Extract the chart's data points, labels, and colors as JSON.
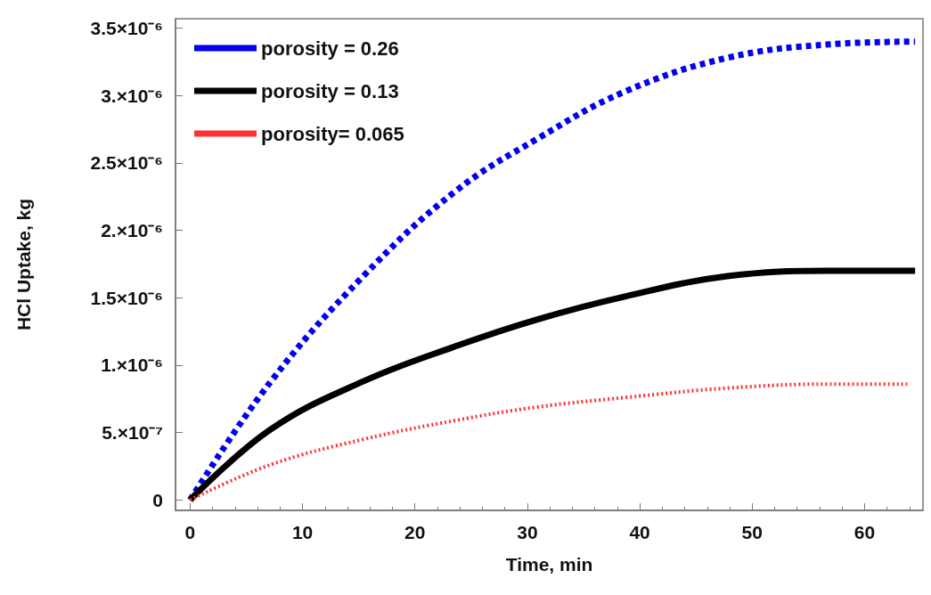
{
  "chart_data": {
    "type": "line",
    "xlabel": "Time, min",
    "ylabel": "HCl Uptake, kg",
    "xlim": [
      -1.3,
      65.2
    ],
    "xticks": [
      0,
      10,
      20,
      30,
      40,
      50,
      60
    ],
    "ylim": [
      -7.7e-08,
      3.57e-06
    ],
    "yticks": [
      {
        "value": 0,
        "label": "0"
      },
      {
        "value": 5e-07,
        "label": "5.×10⁻⁷"
      },
      {
        "value": 1e-06,
        "label": "1.×10⁻⁶"
      },
      {
        "value": 1.5e-06,
        "label": "1.5×10⁻⁶"
      },
      {
        "value": 2e-06,
        "label": "2.×10⁻⁶"
      },
      {
        "value": 2.5e-06,
        "label": "2.5×10⁻⁶"
      },
      {
        "value": 3e-06,
        "label": "3.×10⁻⁶"
      },
      {
        "value": 3.5e-06,
        "label": "3.5×10⁻⁶"
      }
    ],
    "grid": false,
    "legend": "top left",
    "marker": "none",
    "x": [
      0,
      7.1,
      15.4,
      23.6,
      30.9,
      38.7,
      47.8,
      56.9,
      64.5
    ],
    "series": [
      {
        "name": "porosity = 0.26",
        "color": "#0000ee",
        "line_style": "dashed",
        "values": [
          0,
          8.7e-07,
          1.66e-06,
          2.29e-06,
          2.68e-06,
          3.03e-06,
          3.28e-06,
          3.38e-06,
          3.4e-06
        ]
      },
      {
        "name": "porosity = 0.13",
        "color": "#000000",
        "line_style": "solid",
        "values": [
          0,
          5.2e-07,
          8.8e-07,
          1.14e-06,
          1.34e-06,
          1.51e-06,
          1.66e-06,
          1.7e-06,
          1.7e-06
        ]
      },
      {
        "name": "porosity= 0.065",
        "color": "#ff3333",
        "line_style": "dotted",
        "x": [
          0,
          7.1,
          15.4,
          23.6,
          30.9,
          38.7,
          47.8,
          56.9,
          63.8
        ],
        "values": [
          0,
          2.6e-07,
          4.5e-07,
          5.9e-07,
          6.9e-07,
          7.6e-07,
          8.3e-07,
          8.6e-07,
          8.6e-07
        ]
      }
    ]
  }
}
